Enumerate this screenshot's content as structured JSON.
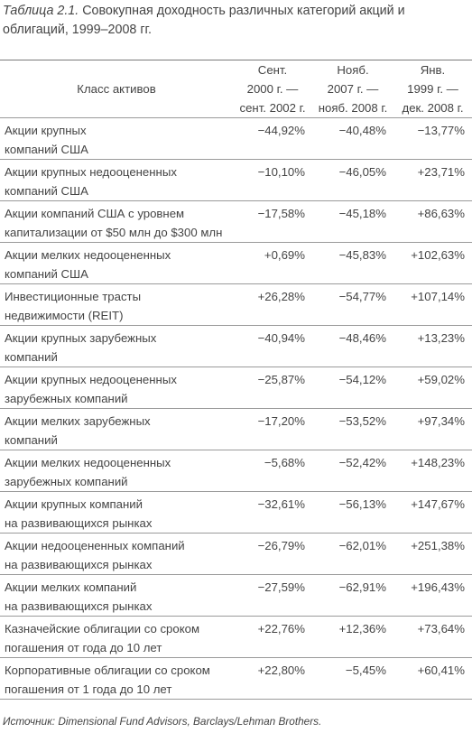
{
  "caption": {
    "label": "Таблица 2.1.",
    "text": "Совокупная доходность различных категорий акций и облигаций, 1999–2008 гг."
  },
  "table": {
    "header": {
      "asset_class": "Класс активов",
      "periods": [
        "Сент.\n2000 г. —\nсент. 2002 г.",
        "Нояб.\n2007 г. —\nнояб. 2008 г.",
        "Янв.\n1999 г. —\nдек. 2008 г."
      ]
    },
    "rows": [
      {
        "name": "Акции крупных\nкомпаний США",
        "values": [
          "−44,92%",
          "−40,48%",
          "−13,77%"
        ]
      },
      {
        "name": "Акции крупных недооцененных\nкомпаний США",
        "values": [
          "−10,10%",
          "−46,05%",
          "+23,71%"
        ]
      },
      {
        "name": "Акции компаний США с уровнем\nкапитализации от $50 млн до $300 млн",
        "values": [
          "−17,58%",
          "−45,18%",
          "+86,63%"
        ]
      },
      {
        "name": "Акции мелких недооцененных\nкомпаний США",
        "values": [
          "+0,69%",
          "−45,83%",
          "+102,63%"
        ]
      },
      {
        "name": "Инвестиционные трасты\nнедвижимости (REIT)",
        "values": [
          "+26,28%",
          "−54,77%",
          "+107,14%"
        ]
      },
      {
        "name": "Акции крупных зарубежных\nкомпаний",
        "values": [
          "−40,94%",
          "−48,46%",
          "+13,23%"
        ]
      },
      {
        "name": "Акции крупных недооцененных\nзарубежных компаний",
        "values": [
          "−25,87%",
          "−54,12%",
          "+59,02%"
        ]
      },
      {
        "name": "Акции мелких зарубежных\nкомпаний",
        "values": [
          "−17,20%",
          "−53,52%",
          "+97,34%"
        ]
      },
      {
        "name": "Акции мелких недооцененных\nзарубежных компаний",
        "values": [
          "−5,68%",
          "−52,42%",
          "+148,23%"
        ]
      },
      {
        "name": "Акции крупных компаний\nна развивающихся рынках",
        "values": [
          "−32,61%",
          "−56,13%",
          "+147,67%"
        ]
      },
      {
        "name": "Акции недооцененных компаний\nна развивающихся рынках",
        "values": [
          "−26,79%",
          "−62,01%",
          "+251,38%"
        ]
      },
      {
        "name": "Акции мелких компаний\nна развивающихся рынках",
        "values": [
          "−27,59%",
          "−62,91%",
          "+196,43%"
        ]
      },
      {
        "name": "Казначейские облигации со сроком\nпогашения от года до 10 лет",
        "values": [
          "+22,76%",
          "+12,36%",
          "+73,64%"
        ]
      },
      {
        "name": "Корпоративные облигации со сроком\nпогашения от 1 года до 10 лет",
        "values": [
          "+22,80%",
          "−5,45%",
          "+60,41%"
        ]
      }
    ]
  },
  "source": "Источник: Dimensional Fund Advisors, Barclays/Lehman Brothers."
}
